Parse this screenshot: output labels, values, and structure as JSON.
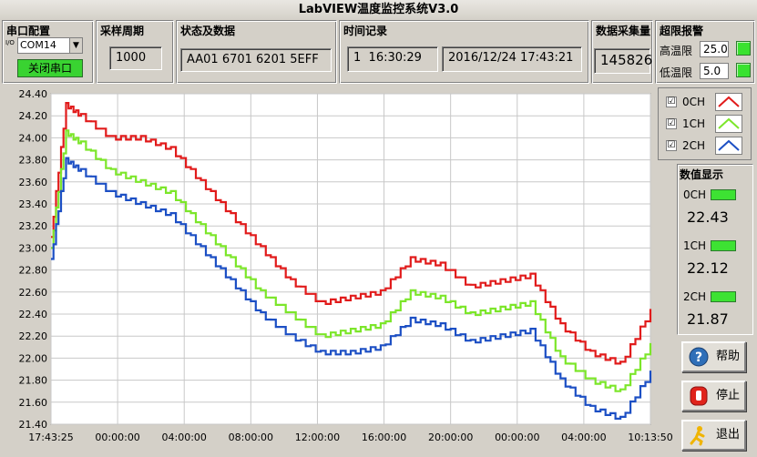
{
  "title": "LabVIEW温度监控系统V3.0",
  "serial": {
    "title": "串口配置",
    "port": "COM14",
    "port_prefix": "I/O",
    "close_button": "关闭串口"
  },
  "period": {
    "title": "采样周期",
    "value": "1000"
  },
  "status": {
    "title": "状态及数据",
    "value": "AA01 6701 6201 5EFF"
  },
  "time": {
    "title": "时间记录",
    "index": "1",
    "start": "16:30:29",
    "now": "2016/12/24 17:43:21"
  },
  "count": {
    "title": "数据采集量",
    "value": "145826"
  },
  "alarm": {
    "title": "超限报警",
    "high_label": "高温限",
    "high_value": "25.0",
    "low_label": "低温限",
    "low_value": "5.0"
  },
  "legend": {
    "items": [
      {
        "label": "0CH",
        "checked": "☑",
        "color": "#e11b1b"
      },
      {
        "label": "1CH",
        "checked": "☑",
        "color": "#7ce62a"
      },
      {
        "label": "2CH",
        "checked": "☑",
        "color": "#1c4fc4"
      }
    ]
  },
  "numeric": {
    "title": "数值显示",
    "channels": [
      {
        "label": "0CH",
        "value": "22.43"
      },
      {
        "label": "1CH",
        "value": "22.12"
      },
      {
        "label": "2CH",
        "value": "21.87"
      }
    ]
  },
  "buttons": {
    "help": "帮助",
    "stop": "停止",
    "exit": "退出"
  },
  "chart_data": {
    "type": "line",
    "x_ticks": [
      "17:43:25",
      "00:00:00",
      "04:00:00",
      "08:00:00",
      "12:00:00",
      "16:00:00",
      "20:00:00",
      "00:00:00",
      "04:00:00",
      "10:13:50"
    ],
    "y_ticks": [
      "24.40",
      "24.20",
      "24.00",
      "23.80",
      "23.60",
      "23.40",
      "23.20",
      "23.00",
      "22.80",
      "22.60",
      "22.40",
      "22.20",
      "22.00",
      "21.80",
      "21.60",
      "21.40"
    ],
    "ylim": [
      21.4,
      24.4
    ],
    "grid": true,
    "x_hours": [
      0,
      1,
      2,
      4,
      6,
      8,
      10,
      12,
      14,
      16,
      18,
      20,
      22,
      24,
      26,
      28,
      30,
      32,
      34,
      36,
      38,
      40
    ],
    "series": [
      {
        "name": "0CH",
        "color": "#e11b1b",
        "values": [
          23.1,
          24.3,
          24.2,
          24.0,
          24.0,
          23.9,
          23.6,
          23.3,
          23.0,
          22.7,
          22.5,
          22.55,
          22.6,
          22.9,
          22.85,
          22.65,
          22.7,
          22.75,
          22.3,
          22.05,
          21.95,
          22.43
        ]
      },
      {
        "name": "1CH",
        "color": "#7ce62a",
        "values": [
          23.0,
          24.05,
          23.95,
          23.7,
          23.6,
          23.5,
          23.2,
          22.9,
          22.6,
          22.4,
          22.2,
          22.25,
          22.3,
          22.6,
          22.55,
          22.4,
          22.45,
          22.5,
          22.0,
          21.8,
          21.7,
          22.12
        ]
      },
      {
        "name": "2CH",
        "color": "#1c4fc4",
        "values": [
          22.9,
          23.8,
          23.7,
          23.5,
          23.4,
          23.3,
          23.0,
          22.7,
          22.4,
          22.2,
          22.05,
          22.05,
          22.1,
          22.35,
          22.3,
          22.15,
          22.2,
          22.25,
          21.8,
          21.55,
          21.45,
          21.87
        ]
      }
    ]
  }
}
